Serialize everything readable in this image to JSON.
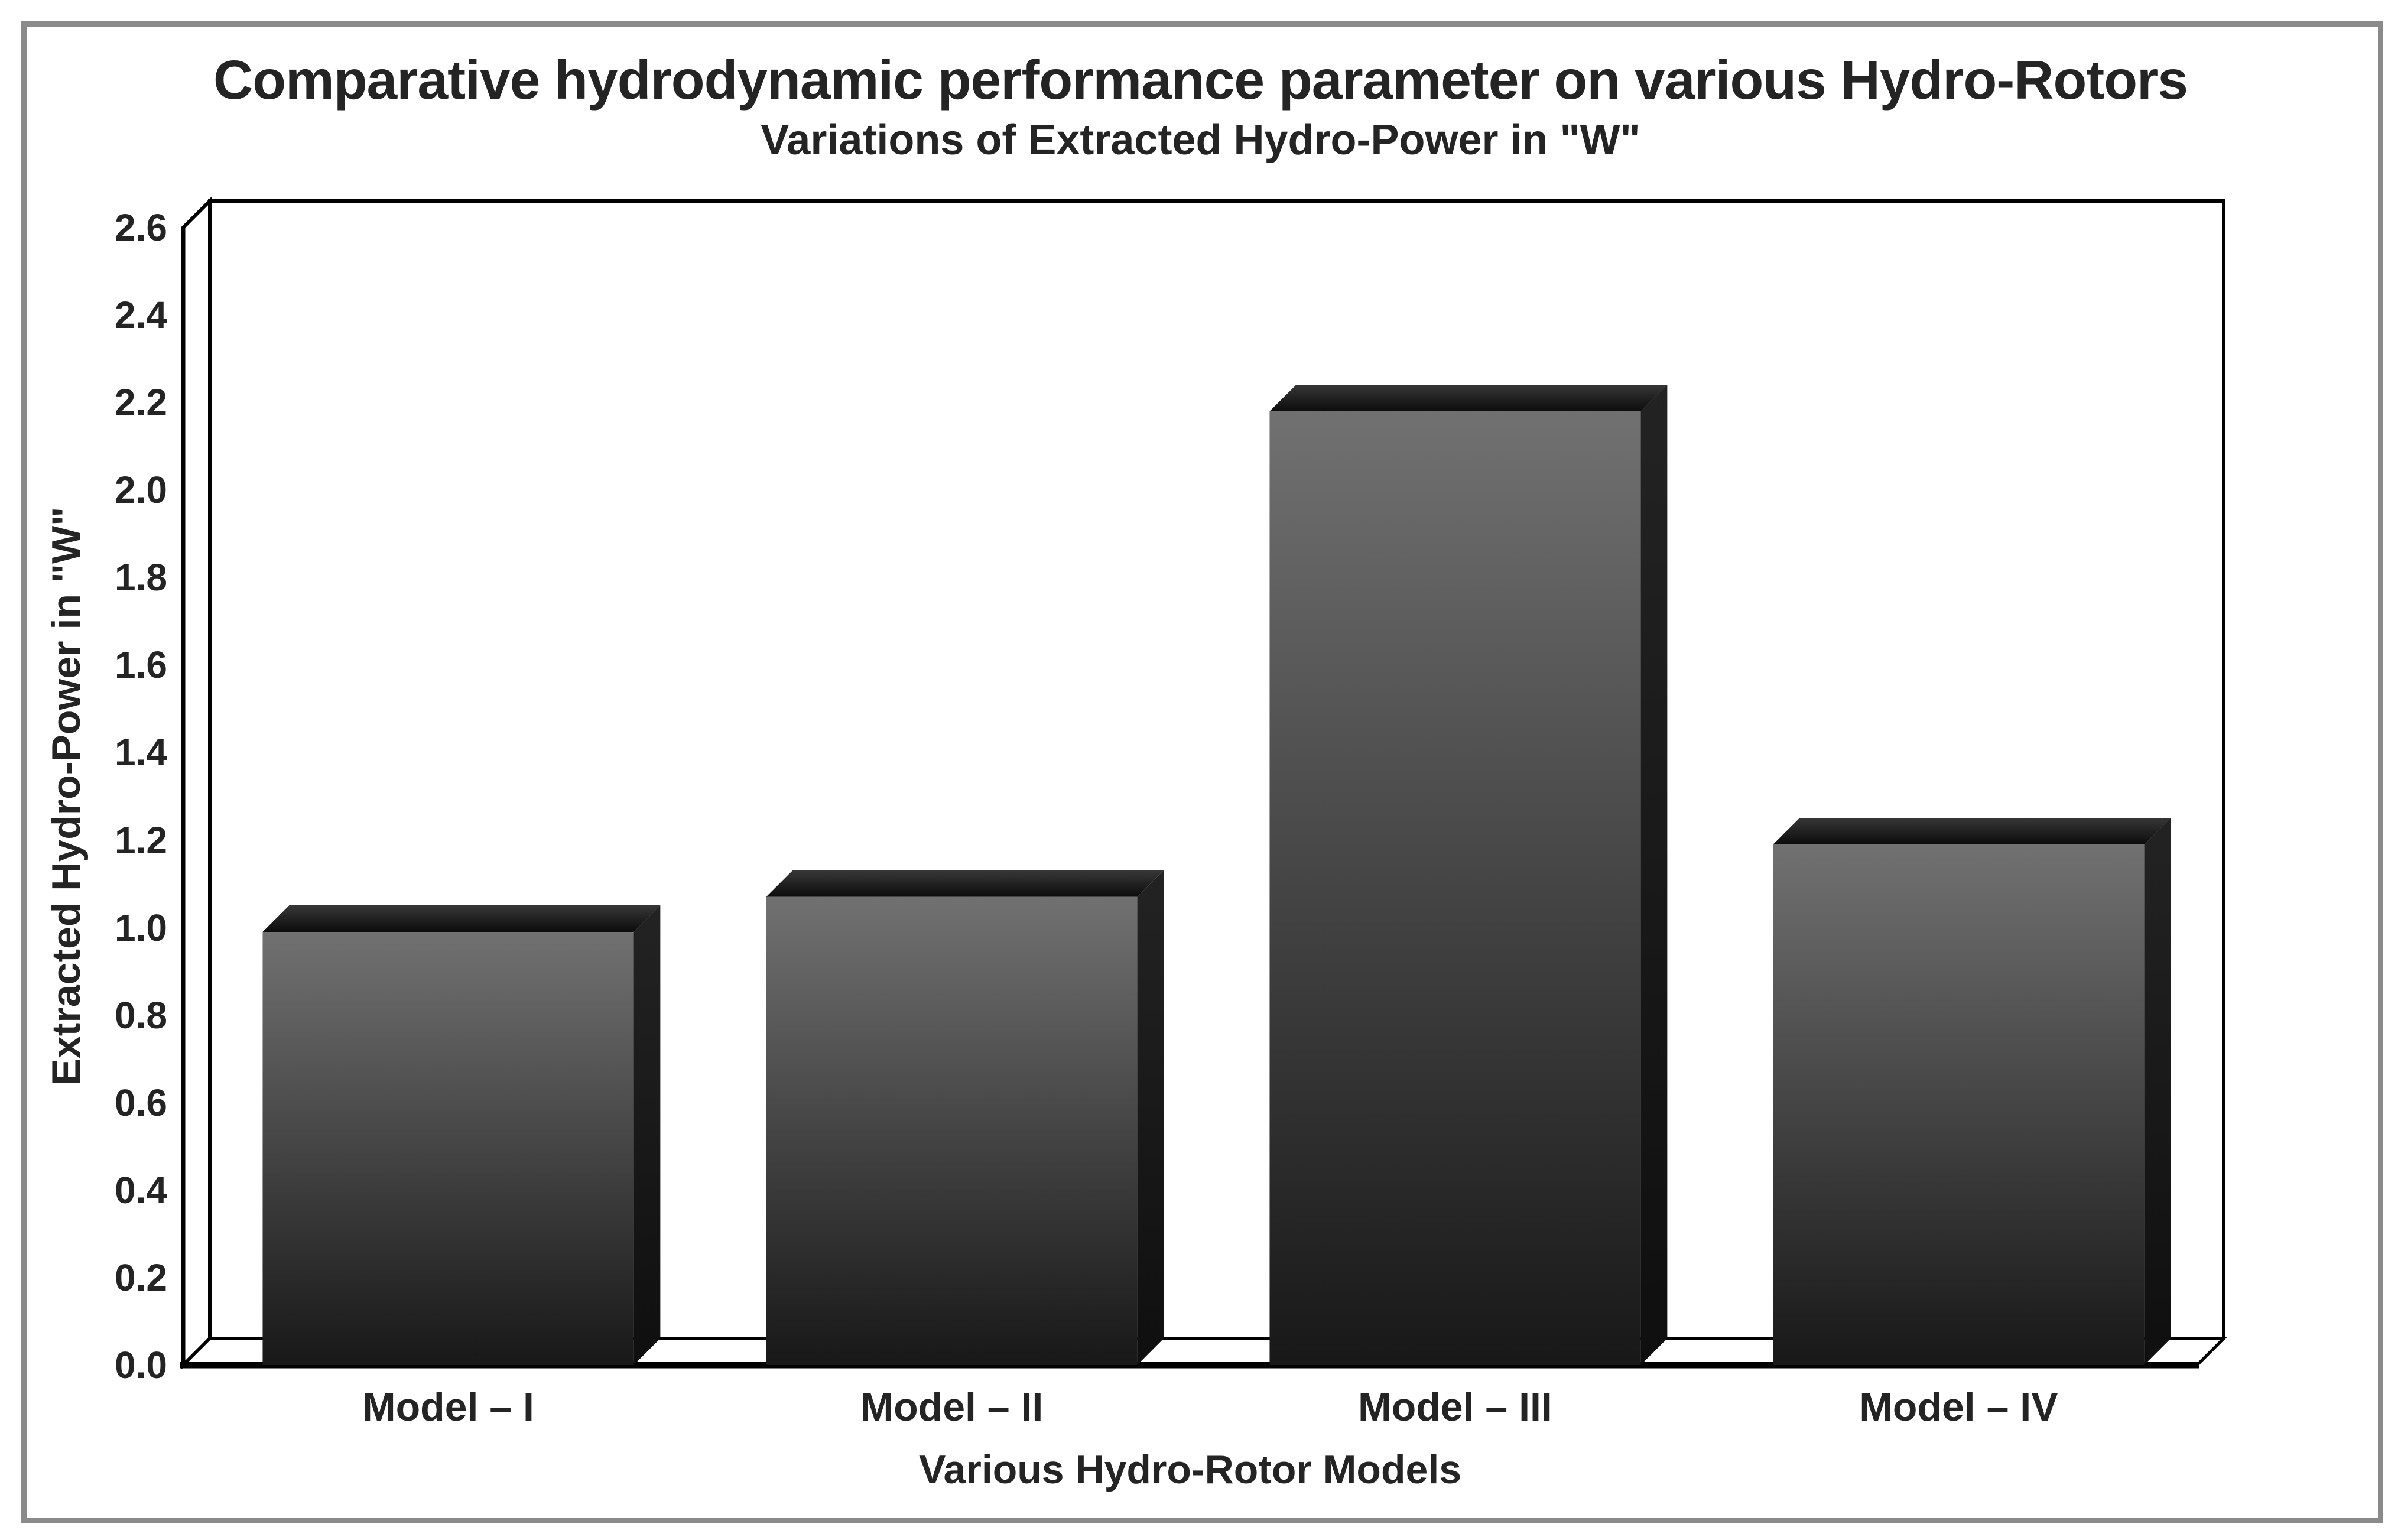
{
  "figure": {
    "title": "Comparative hydrodynamic performance parameter on various Hydro-Rotors",
    "subtitle": "Variations of Extracted Hydro-Power in \"W\"",
    "border_color": "#8a8a8a"
  },
  "chart_data": {
    "type": "bar",
    "style": "3d-column",
    "title": "Comparative hydrodynamic performance parameter on various Hydro-Rotors",
    "subtitle": "Variations of Extracted Hydro-Power in \"W\"",
    "categories": [
      "Model – I",
      "Model – II",
      "Model – III",
      "Model – IV"
    ],
    "values": [
      0.99,
      1.07,
      2.18,
      1.19
    ],
    "xlabel": "Various Hydro-Rotor Models",
    "ylabel": "Extracted Hydro-Power in \"W\"",
    "ylim": [
      0.0,
      2.6
    ],
    "ytick_step": 0.2,
    "yticks": [
      "0.0",
      "0.2",
      "0.4",
      "0.6",
      "0.8",
      "1.0",
      "1.2",
      "1.4",
      "1.6",
      "1.8",
      "2.0",
      "2.2",
      "2.4",
      "2.6"
    ],
    "grid": false,
    "legend": "none",
    "colors": {
      "bar_front_top": "#717171",
      "bar_front_bottom": "#181818",
      "bar_top_face_light": "#373737",
      "bar_top_face_dark": "#0c0c0c",
      "bar_side_top": "#232323",
      "bar_side_bottom": "#0f0f0f",
      "axis_line": "#000000",
      "text": "#242424"
    }
  }
}
